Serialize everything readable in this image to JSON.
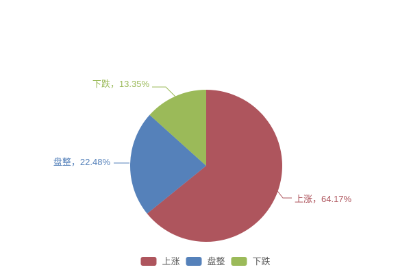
{
  "chart_data": {
    "type": "pie",
    "title": "",
    "slices": [
      {
        "id": "up",
        "label": "上涨",
        "value": 64.17,
        "color": "#AE555D"
      },
      {
        "id": "flat",
        "label": "盘整",
        "value": 22.48,
        "color": "#5581BA"
      },
      {
        "id": "down",
        "label": "下跌",
        "value": 13.35,
        "color": "#9BBA59"
      }
    ],
    "start_angle_deg": 0,
    "direction": "clockwise",
    "label_format": "{label}，{value}%",
    "legend_position": "bottom",
    "legend_text_color": "#595959",
    "background_color": "#ffffff"
  }
}
